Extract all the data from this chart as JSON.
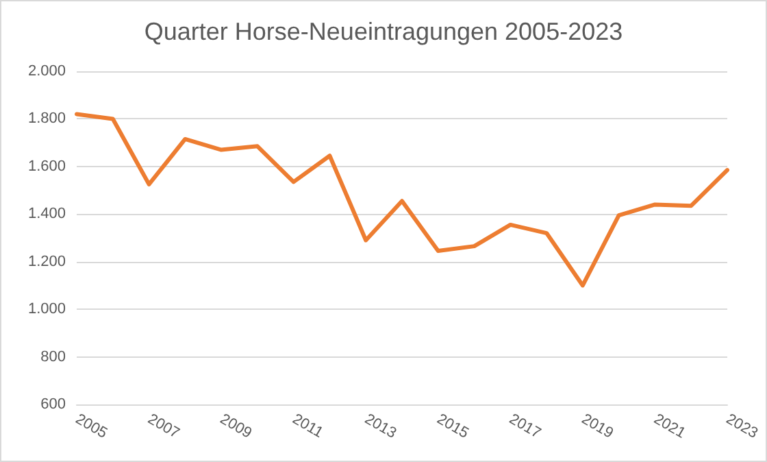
{
  "chart_data": {
    "type": "line",
    "title": "Quarter Horse-Neueintragungen 2005-2023",
    "categories": [
      "2005",
      null,
      "2007",
      null,
      "2009",
      null,
      "2011",
      null,
      "2013",
      null,
      "2015",
      null,
      "2017",
      null,
      "2019",
      null,
      "2021",
      null,
      "2023"
    ],
    "series": [
      {
        "color": "#ed7d31",
        "values": [
          1820,
          1800,
          1525,
          1715,
          1670,
          1685,
          1535,
          1645,
          1290,
          1455,
          1245,
          1265,
          1355,
          1320,
          1100,
          1395,
          1440,
          1435,
          1585
        ]
      }
    ],
    "ylim": [
      600,
      2000
    ],
    "yticks": [
      {
        "value": 600,
        "label": "600"
      },
      {
        "value": 800,
        "label": "800"
      },
      {
        "value": 1000,
        "label": "1.000"
      },
      {
        "value": 1200,
        "label": "1.200"
      },
      {
        "value": 1400,
        "label": "1.400"
      },
      {
        "value": 1600,
        "label": "1.600"
      },
      {
        "value": 1800,
        "label": "1.800"
      },
      {
        "value": 2000,
        "label": "2.000"
      }
    ],
    "grid": "y",
    "marker": "none",
    "line_style": "solid"
  }
}
